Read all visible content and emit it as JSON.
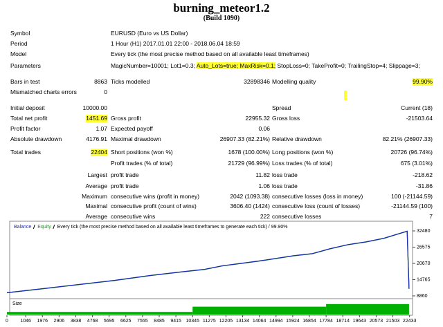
{
  "header": {
    "title": "burning_meteor1.2",
    "build": "(Build 1090)"
  },
  "info": [
    {
      "label": "Symbol",
      "value": "EURUSD (Euro vs US Dollar)"
    },
    {
      "label": "Period",
      "value": "1 Hour (H1) 2017.01.01 22:00 - 2018.06.04 18:59"
    },
    {
      "label": "Model",
      "value": "Every tick (the most precise method based on all available least timeframes)"
    },
    {
      "label": "Parameters",
      "parts": [
        {
          "text": "MagicNumber=10001; Lot1=0.3; "
        },
        {
          "text": "Auto_Lots=true; MaxRisk=0.1;",
          "highlight": true
        },
        {
          "text": " StopLoss=0; TakeProfit=0; TrailingStop=4; Slippage=3;"
        }
      ]
    }
  ],
  "stats": [
    {
      "label": "Bars in test",
      "value": "8863",
      "label2": "Ticks modelled",
      "value2": "32898346",
      "label3": "Modelling quality",
      "value3": "99.90%",
      "highlight": "value3"
    },
    {
      "label": "Mismatched charts errors",
      "value": "0"
    },
    {
      "label": "Initial deposit",
      "value": "10000.00",
      "label3": "Spread",
      "value3": "Current (18)"
    },
    {
      "label": "Total net profit",
      "value": "1451.69",
      "label2": "Gross profit",
      "value2": "22955.32",
      "label3": "Gross loss",
      "value3": "-21503.64",
      "highlight": "value"
    },
    {
      "label": "Profit factor",
      "value": "1.07",
      "label2": "Expected payoff",
      "value2": "0.06"
    },
    {
      "label": "Absolute drawdown",
      "value": "4176.91",
      "label2": "Maximal drawdown",
      "value2": "26907.33 (82.21%)",
      "label3": "Relative drawdown",
      "value3": "82.21% (26907.33)"
    },
    {
      "label": "Total trades",
      "value": "22404",
      "label2": "Short positions (won %)",
      "value2": "1678 (100.00%)",
      "label3": "Long positions (won %)",
      "value3": "20726 (96.74%)",
      "highlight": "value"
    },
    {
      "label2": "Profit trades (% of total)",
      "value2": "21729 (96.99%)",
      "label3": "Loss trades (% of total)",
      "value3": "675 (3.01%)"
    },
    {
      "sublabel": "Largest",
      "label2": "profit trade",
      "value2": "11.82",
      "label3": "loss trade",
      "value3": "-218.62"
    },
    {
      "sublabel": "Average",
      "label2": "profit trade",
      "value2": "1.06",
      "label3": "loss trade",
      "value3": "-31.86"
    },
    {
      "sublabel": "Maximum",
      "label2": "consecutive wins (profit in money)",
      "value2": "2042 (1093.38)",
      "label3": "consecutive losses (loss in money)",
      "value3": "100 (-21144.59)"
    },
    {
      "sublabel": "Maximal",
      "label2": "consecutive profit (count of wins)",
      "value2": "3606.40 (1424)",
      "label3": "consecutive loss (count of losses)",
      "value3": "-21144.59 (100)"
    },
    {
      "sublabel": "Average",
      "label2": "consecutive wins",
      "value2": "222",
      "label3": "consecutive losses",
      "value3": "7"
    }
  ],
  "chart_data": {
    "type": "line",
    "title": "Every tick (the most precise method based on all available least timeframes to generate each tick) / 99.90%",
    "x": [
      0,
      2000,
      4000,
      6000,
      8000,
      10000,
      11000,
      12000,
      14000,
      16000,
      17000,
      18000,
      19000,
      20000,
      21000,
      22000,
      22300,
      22404
    ],
    "series": [
      {
        "name": "Balance",
        "color": "#1c2ab4",
        "values": [
          10000,
          11500,
          13000,
          14500,
          16300,
          17800,
          18500,
          19800,
          21500,
          23500,
          24200,
          26000,
          27500,
          28500,
          29800,
          31800,
          32400,
          11451.69
        ]
      },
      {
        "name": "Equity",
        "color": "#00a000",
        "values": [
          10000,
          11450,
          12950,
          14450,
          16250,
          17750,
          18450,
          19750,
          21450,
          23450,
          24150,
          25950,
          27450,
          28450,
          29750,
          31750,
          32300,
          11451.69
        ]
      }
    ],
    "xlim": [
      0,
      22600
    ],
    "ylim": [
      7850,
      35250
    ],
    "xticks": [
      0,
      1046,
      1976,
      2906,
      3838,
      4768,
      5695,
      6625,
      7555,
      8485,
      9415,
      10345,
      11275,
      12205,
      13134,
      14064,
      14994,
      15924,
      16854,
      17784,
      18714,
      19643,
      20573,
      21503,
      22433
    ],
    "yticks": [
      32480,
      26575,
      20670,
      14765,
      8860
    ],
    "size": {
      "name": "Size",
      "color": "#00b000",
      "bins": [
        0,
        10345,
        17784,
        22404
      ],
      "values": [
        0.3,
        0.9,
        1.2
      ],
      "lim": [
        0,
        1.5
      ]
    }
  }
}
